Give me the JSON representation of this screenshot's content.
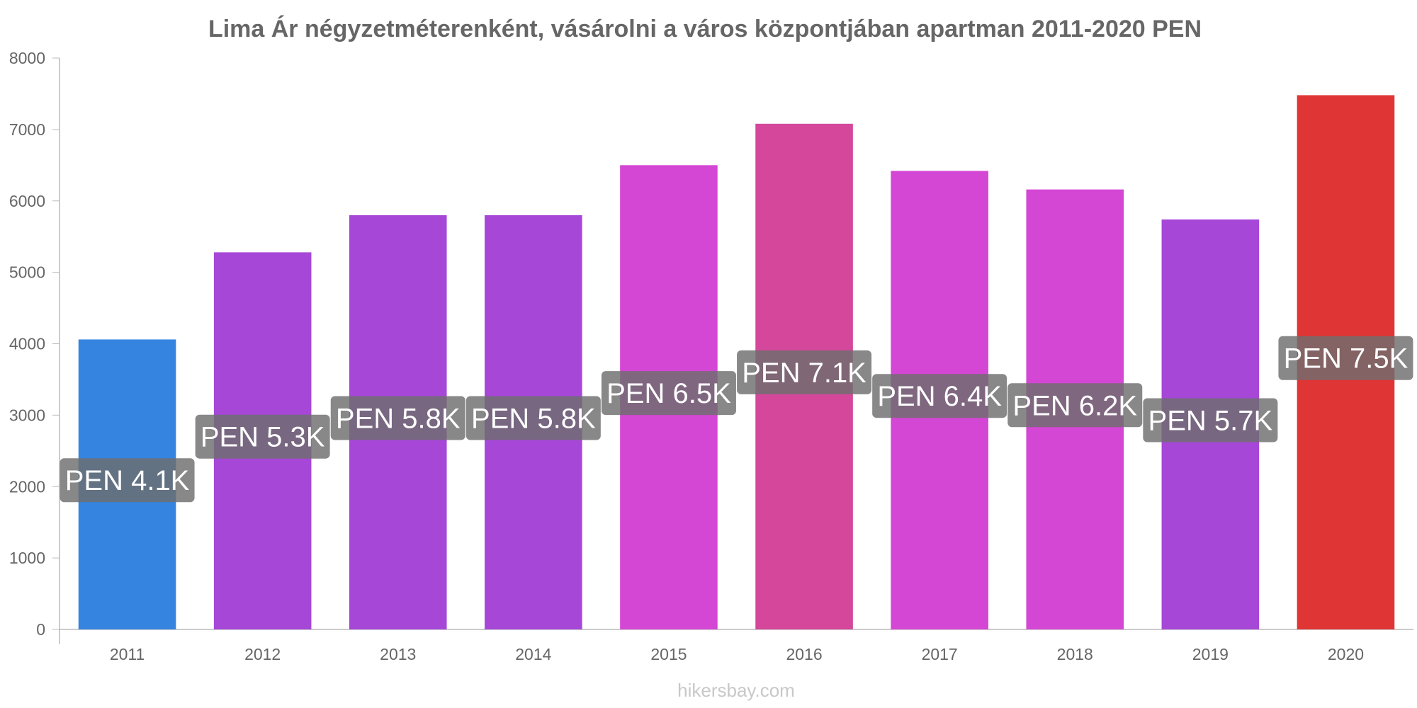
{
  "chart_data": {
    "type": "bar",
    "title": "Lima Ár négyzetméterenként, vásárolni a város központjában apartman 2011-2020 PEN",
    "xlabel": "",
    "ylabel": "",
    "ylim": [
      0,
      8000
    ],
    "yticks": [
      0,
      1000,
      2000,
      3000,
      4000,
      5000,
      6000,
      7000,
      8000
    ],
    "grid": false,
    "categories": [
      "2011",
      "2012",
      "2013",
      "2014",
      "2015",
      "2016",
      "2017",
      "2018",
      "2019",
      "2020"
    ],
    "values": [
      4060,
      5280,
      5800,
      5800,
      6500,
      7080,
      6420,
      6160,
      5740,
      7480
    ],
    "data_labels": [
      "PEN 4.1K",
      "PEN 5.3K",
      "PEN 5.8K",
      "PEN 5.8K",
      "PEN 6.5K",
      "PEN 7.1K",
      "PEN 6.4K",
      "PEN 6.2K",
      "PEN 5.7K",
      "PEN 7.5K"
    ],
    "colors": [
      "#3584e0",
      "#a647d8",
      "#a647d8",
      "#a647d8",
      "#d447d4",
      "#d4479b",
      "#d447d4",
      "#d447d4",
      "#a647d8",
      "#e03535"
    ],
    "label_bg": "#6e6e6e"
  },
  "watermark": "hikersbay.com"
}
